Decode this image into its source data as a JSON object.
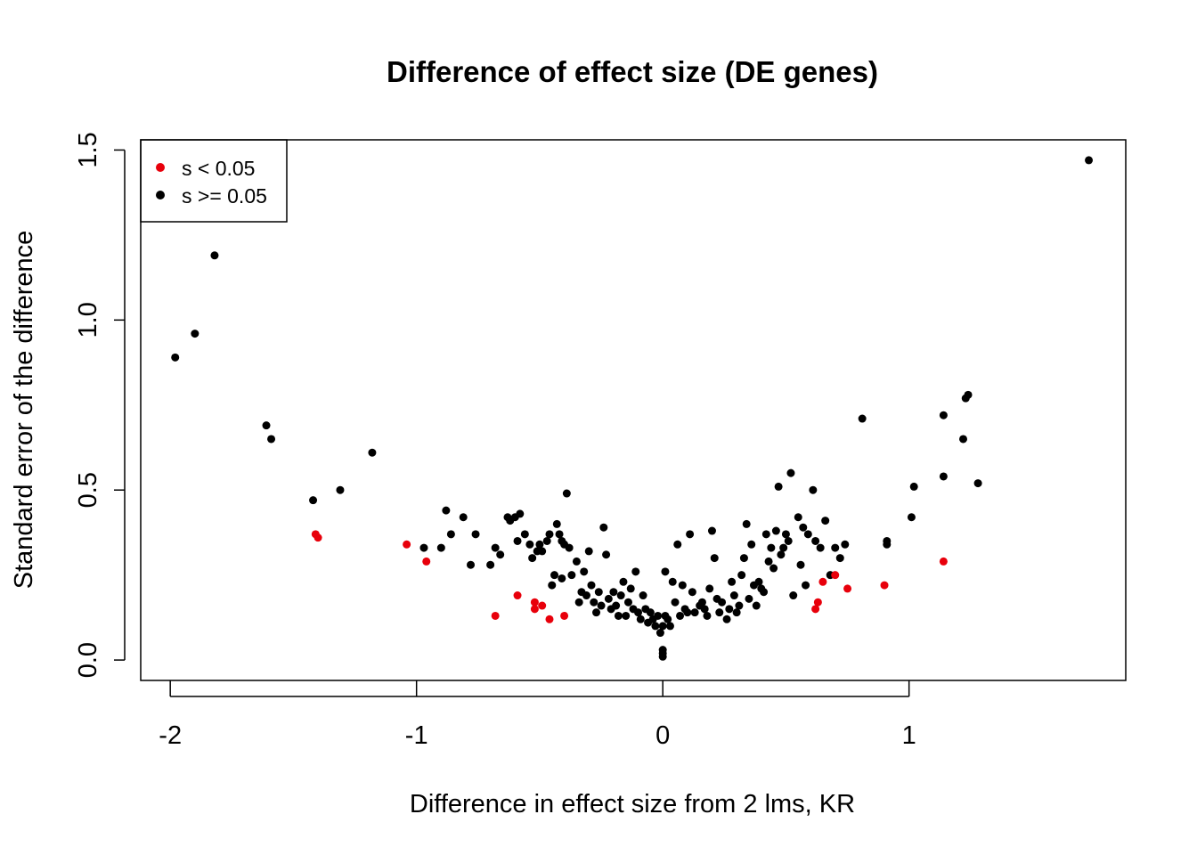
{
  "chart_data": {
    "type": "scatter",
    "title": "Difference of effect size (DE genes)",
    "xlabel": "Difference in effect size from 2 lms, KR",
    "ylabel": "Standard error of the difference",
    "xlim": [
      -2.12,
      1.88
    ],
    "ylim": [
      -0.06,
      1.53
    ],
    "xticks": [
      -2,
      -1,
      0,
      1
    ],
    "xtick_labels": [
      "-2",
      "-1",
      "0",
      "1"
    ],
    "yticks": [
      0.0,
      0.5,
      1.0,
      1.5
    ],
    "ytick_labels": [
      "0.0",
      "0.5",
      "1.0",
      "1.5"
    ],
    "grid": false,
    "legend_position": "top-left",
    "series": [
      {
        "name": "s < 0.05",
        "color": "#e8000b",
        "points": [
          [
            -1.41,
            0.37
          ],
          [
            -1.4,
            0.36
          ],
          [
            -1.04,
            0.34
          ],
          [
            -0.96,
            0.29
          ],
          [
            -0.68,
            0.13
          ],
          [
            -0.59,
            0.19
          ],
          [
            -0.52,
            0.17
          ],
          [
            -0.52,
            0.15
          ],
          [
            -0.49,
            0.16
          ],
          [
            -0.46,
            0.12
          ],
          [
            -0.4,
            0.13
          ],
          [
            0.62,
            0.15
          ],
          [
            0.63,
            0.17
          ],
          [
            0.65,
            0.23
          ],
          [
            0.7,
            0.25
          ],
          [
            0.75,
            0.21
          ],
          [
            0.9,
            0.22
          ],
          [
            1.14,
            0.29
          ]
        ]
      },
      {
        "name": "s >= 0.05",
        "color": "#000000",
        "points": [
          [
            -1.98,
            0.89
          ],
          [
            -1.9,
            0.96
          ],
          [
            -1.82,
            1.19
          ],
          [
            -1.61,
            0.69
          ],
          [
            -1.59,
            0.65
          ],
          [
            -1.42,
            0.47
          ],
          [
            -1.31,
            0.5
          ],
          [
            -1.18,
            0.61
          ],
          [
            -0.97,
            0.33
          ],
          [
            -0.9,
            0.33
          ],
          [
            -0.88,
            0.44
          ],
          [
            -0.86,
            0.37
          ],
          [
            -0.81,
            0.42
          ],
          [
            -0.78,
            0.28
          ],
          [
            -0.76,
            0.37
          ],
          [
            -0.7,
            0.28
          ],
          [
            -0.68,
            0.33
          ],
          [
            -0.66,
            0.31
          ],
          [
            -0.63,
            0.42
          ],
          [
            -0.62,
            0.41
          ],
          [
            -0.6,
            0.42
          ],
          [
            -0.58,
            0.43
          ],
          [
            -0.59,
            0.35
          ],
          [
            -0.56,
            0.37
          ],
          [
            -0.54,
            0.34
          ],
          [
            -0.53,
            0.3
          ],
          [
            -0.51,
            0.32
          ],
          [
            -0.5,
            0.34
          ],
          [
            -0.49,
            0.32
          ],
          [
            -0.47,
            0.35
          ],
          [
            -0.46,
            0.37
          ],
          [
            -0.45,
            0.22
          ],
          [
            -0.44,
            0.25
          ],
          [
            -0.43,
            0.4
          ],
          [
            -0.42,
            0.37
          ],
          [
            -0.41,
            0.35
          ],
          [
            -0.41,
            0.24
          ],
          [
            -0.4,
            0.34
          ],
          [
            -0.39,
            0.49
          ],
          [
            -0.38,
            0.33
          ],
          [
            -0.37,
            0.25
          ],
          [
            -0.35,
            0.29
          ],
          [
            -0.34,
            0.17
          ],
          [
            -0.33,
            0.2
          ],
          [
            -0.32,
            0.26
          ],
          [
            -0.31,
            0.19
          ],
          [
            -0.3,
            0.32
          ],
          [
            -0.29,
            0.22
          ],
          [
            -0.28,
            0.17
          ],
          [
            -0.27,
            0.14
          ],
          [
            -0.26,
            0.2
          ],
          [
            -0.25,
            0.16
          ],
          [
            -0.24,
            0.39
          ],
          [
            -0.23,
            0.31
          ],
          [
            -0.22,
            0.18
          ],
          [
            -0.21,
            0.15
          ],
          [
            -0.2,
            0.2
          ],
          [
            -0.19,
            0.16
          ],
          [
            -0.18,
            0.13
          ],
          [
            -0.17,
            0.19
          ],
          [
            -0.16,
            0.23
          ],
          [
            -0.15,
            0.13
          ],
          [
            -0.14,
            0.17
          ],
          [
            -0.13,
            0.21
          ],
          [
            -0.12,
            0.15
          ],
          [
            -0.11,
            0.26
          ],
          [
            -0.1,
            0.14
          ],
          [
            -0.09,
            0.12
          ],
          [
            -0.08,
            0.19
          ],
          [
            -0.07,
            0.15
          ],
          [
            -0.06,
            0.11
          ],
          [
            -0.05,
            0.14
          ],
          [
            -0.04,
            0.12
          ],
          [
            -0.03,
            0.1
          ],
          [
            -0.02,
            0.13
          ],
          [
            -0.01,
            0.08
          ],
          [
            0.0,
            0.02
          ],
          [
            0.0,
            0.01
          ],
          [
            0.0,
            0.03
          ],
          [
            0.0,
            0.1
          ],
          [
            0.01,
            0.13
          ],
          [
            0.01,
            0.26
          ],
          [
            0.02,
            0.12
          ],
          [
            0.03,
            0.1
          ],
          [
            0.04,
            0.23
          ],
          [
            0.05,
            0.17
          ],
          [
            0.06,
            0.34
          ],
          [
            0.07,
            0.13
          ],
          [
            0.08,
            0.22
          ],
          [
            0.09,
            0.15
          ],
          [
            0.1,
            0.14
          ],
          [
            0.11,
            0.37
          ],
          [
            0.12,
            0.2
          ],
          [
            0.13,
            0.14
          ],
          [
            0.15,
            0.16
          ],
          [
            0.16,
            0.17
          ],
          [
            0.17,
            0.15
          ],
          [
            0.18,
            0.13
          ],
          [
            0.19,
            0.21
          ],
          [
            0.2,
            0.38
          ],
          [
            0.21,
            0.3
          ],
          [
            0.22,
            0.18
          ],
          [
            0.23,
            0.14
          ],
          [
            0.24,
            0.17
          ],
          [
            0.26,
            0.12
          ],
          [
            0.27,
            0.15
          ],
          [
            0.28,
            0.23
          ],
          [
            0.29,
            0.19
          ],
          [
            0.3,
            0.14
          ],
          [
            0.31,
            0.16
          ],
          [
            0.32,
            0.25
          ],
          [
            0.33,
            0.3
          ],
          [
            0.34,
            0.4
          ],
          [
            0.35,
            0.18
          ],
          [
            0.36,
            0.34
          ],
          [
            0.37,
            0.22
          ],
          [
            0.38,
            0.16
          ],
          [
            0.39,
            0.23
          ],
          [
            0.4,
            0.21
          ],
          [
            0.41,
            0.2
          ],
          [
            0.42,
            0.37
          ],
          [
            0.43,
            0.29
          ],
          [
            0.44,
            0.33
          ],
          [
            0.45,
            0.27
          ],
          [
            0.46,
            0.38
          ],
          [
            0.47,
            0.51
          ],
          [
            0.48,
            0.31
          ],
          [
            0.49,
            0.33
          ],
          [
            0.5,
            0.37
          ],
          [
            0.51,
            0.35
          ],
          [
            0.52,
            0.55
          ],
          [
            0.53,
            0.19
          ],
          [
            0.55,
            0.42
          ],
          [
            0.56,
            0.28
          ],
          [
            0.57,
            0.39
          ],
          [
            0.58,
            0.22
          ],
          [
            0.59,
            0.37
          ],
          [
            0.61,
            0.5
          ],
          [
            0.62,
            0.35
          ],
          [
            0.64,
            0.33
          ],
          [
            0.66,
            0.41
          ],
          [
            0.68,
            0.25
          ],
          [
            0.7,
            0.33
          ],
          [
            0.72,
            0.3
          ],
          [
            0.74,
            0.34
          ],
          [
            0.81,
            0.71
          ],
          [
            0.91,
            0.35
          ],
          [
            0.91,
            0.34
          ],
          [
            1.01,
            0.42
          ],
          [
            1.02,
            0.51
          ],
          [
            1.14,
            0.54
          ],
          [
            1.14,
            0.72
          ],
          [
            1.22,
            0.65
          ],
          [
            1.23,
            0.77
          ],
          [
            1.24,
            0.78
          ],
          [
            1.28,
            0.52
          ],
          [
            1.73,
            1.47
          ]
        ]
      }
    ]
  }
}
